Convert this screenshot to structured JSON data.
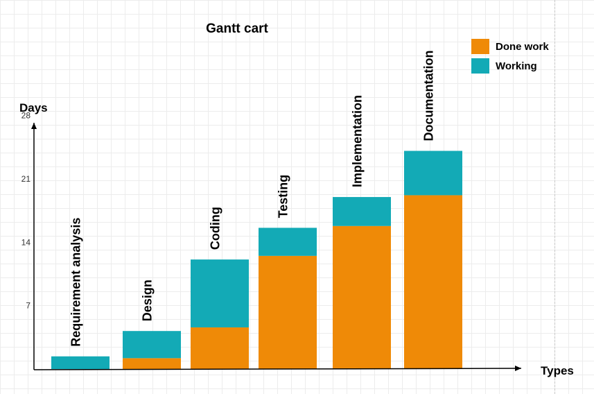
{
  "chart_data": {
    "type": "bar",
    "stacked": true,
    "title": "Gantt cart",
    "xlabel": "Types",
    "ylabel": "Days",
    "yticks": [
      7,
      14,
      21,
      28
    ],
    "ylim": [
      0,
      28
    ],
    "categories": [
      "Requirement analysis",
      "Design",
      "Coding",
      "Testing",
      "Implementation",
      "Documentation"
    ],
    "series": [
      {
        "name": "Done work",
        "color": "#ef8a07",
        "values": [
          0,
          1.2,
          4.6,
          12.5,
          15.8,
          19.2
        ]
      },
      {
        "name": "Working",
        "color": "#13aab6",
        "values": [
          1.4,
          3,
          7.5,
          3.1,
          3.2,
          4.9
        ]
      }
    ],
    "legend": "top-right",
    "grid": true
  }
}
